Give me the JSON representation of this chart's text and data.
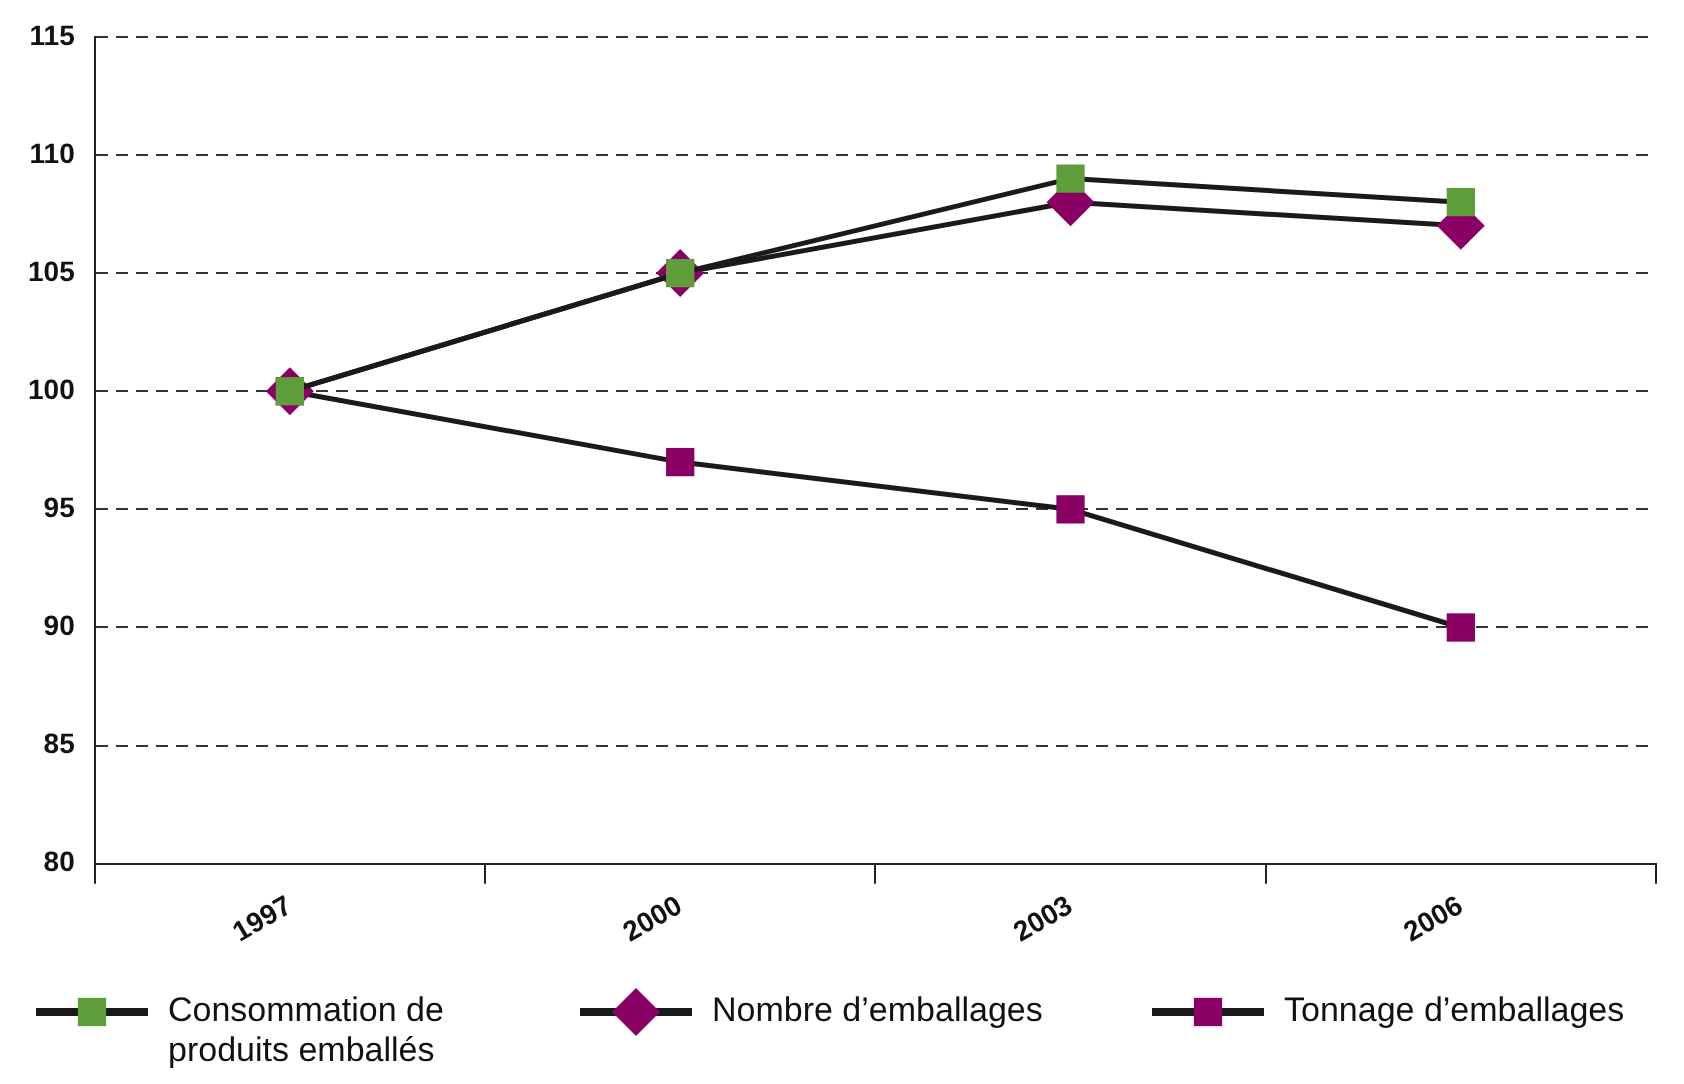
{
  "chart_data": {
    "type": "line",
    "categories": [
      "1997",
      "2000",
      "2003",
      "2006"
    ],
    "series": [
      {
        "name": "Consommation de produits emballés",
        "color": "#5f9c3a",
        "marker": "square",
        "values": [
          100,
          105,
          109,
          108
        ]
      },
      {
        "name": "Nombre d’emballages",
        "color": "#8b0064",
        "marker": "diamond",
        "values": [
          100,
          105,
          108,
          107
        ]
      },
      {
        "name": "Tonnage d’emballages",
        "color": "#8b0064",
        "marker": "square",
        "values": [
          100,
          97,
          95,
          90
        ]
      }
    ],
    "ylim": [
      80,
      115
    ],
    "yticks": [
      80,
      85,
      90,
      95,
      100,
      105,
      110,
      115
    ],
    "grid": "y",
    "legend": "bottom",
    "line_style": "solid"
  }
}
